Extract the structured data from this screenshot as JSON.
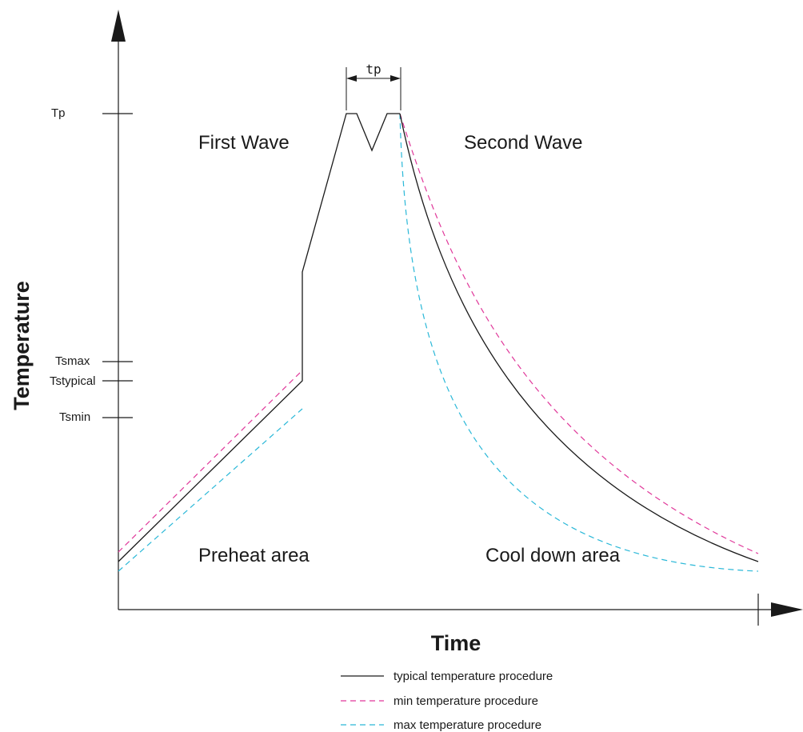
{
  "axes": {
    "x_title": "Time",
    "y_title": "Temperature"
  },
  "y_ticks": {
    "tp": "Tp",
    "tsmax": "Tsmax",
    "tstypical": "Tstypical",
    "tsmin": "Tsmin"
  },
  "dimension": {
    "tp_label": "tp"
  },
  "zones": {
    "first_wave": "First Wave",
    "second_wave": "Second Wave",
    "preheat": "Preheat area",
    "cool_down": "Cool down area"
  },
  "legend": [
    {
      "label": "typical temperature procedure",
      "color": "#1a1a1a",
      "style": "solid"
    },
    {
      "label": "min temperature procedure",
      "color": "#e0389a",
      "style": "dashed"
    },
    {
      "label": "max temperature procedure",
      "color": "#2ab8d8",
      "style": "dashed"
    }
  ],
  "colors": {
    "axis": "#1a1a1a",
    "typical": "#1a1a1a",
    "min": "#e0389a",
    "max": "#2ab8d8"
  }
}
